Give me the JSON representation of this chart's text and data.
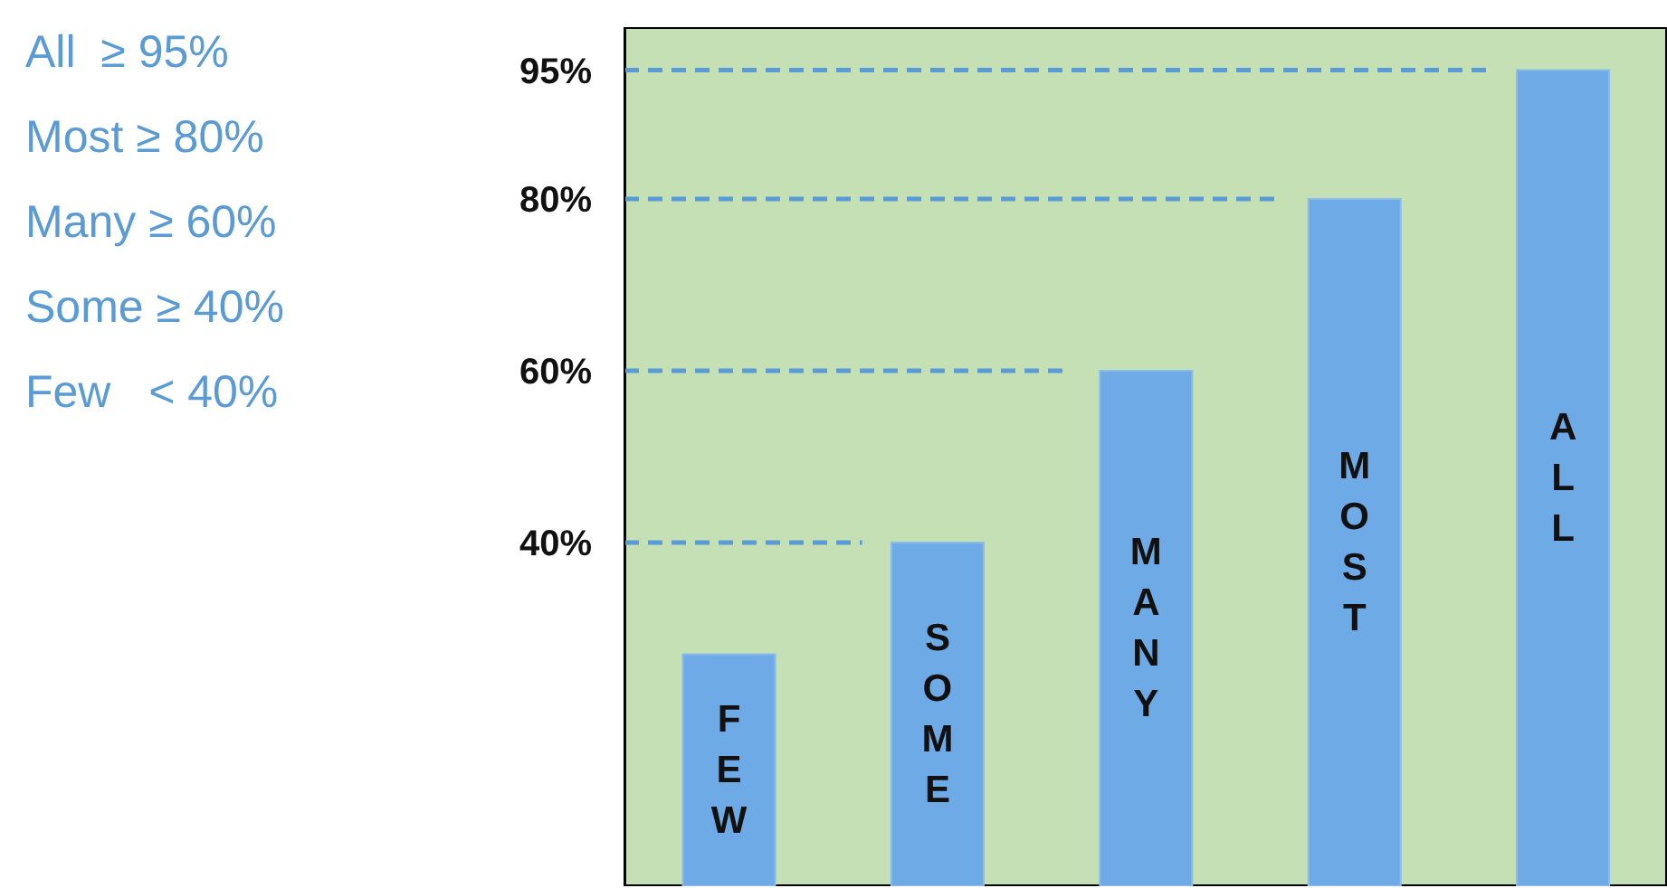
{
  "chart_data": {
    "type": "bar",
    "categories": [
      "FEW",
      "SOME",
      "MANY",
      "MOST",
      "ALL"
    ],
    "values": [
      27,
      40,
      60,
      80,
      95
    ],
    "color": "#6eabe6",
    "ylim": [
      0,
      100
    ],
    "yticks": [
      {
        "value": 40,
        "label": "40%"
      },
      {
        "value": 60,
        "label": "60%"
      },
      {
        "value": 80,
        "label": "80%"
      },
      {
        "value": 95,
        "label": "95%"
      }
    ],
    "tick_labels": "y",
    "grid": false,
    "legend": false,
    "ref_lines": [
      {
        "axis": "y",
        "value": 40,
        "color": "#5b9bd5",
        "line_style": "dashed"
      },
      {
        "axis": "y",
        "value": 60,
        "color": "#5b9bd5",
        "line_style": "dashed"
      },
      {
        "axis": "y",
        "value": 80,
        "color": "#5b9bd5",
        "line_style": "dashed"
      },
      {
        "axis": "y",
        "value": 95,
        "color": "#5b9bd5",
        "line_style": "dashed"
      }
    ],
    "annotations": [
      "All  ≥ 95%",
      "Most ≥ 80%",
      "Many ≥ 60%",
      "Some ≥ 40%",
      "Few   < 40%"
    ]
  }
}
